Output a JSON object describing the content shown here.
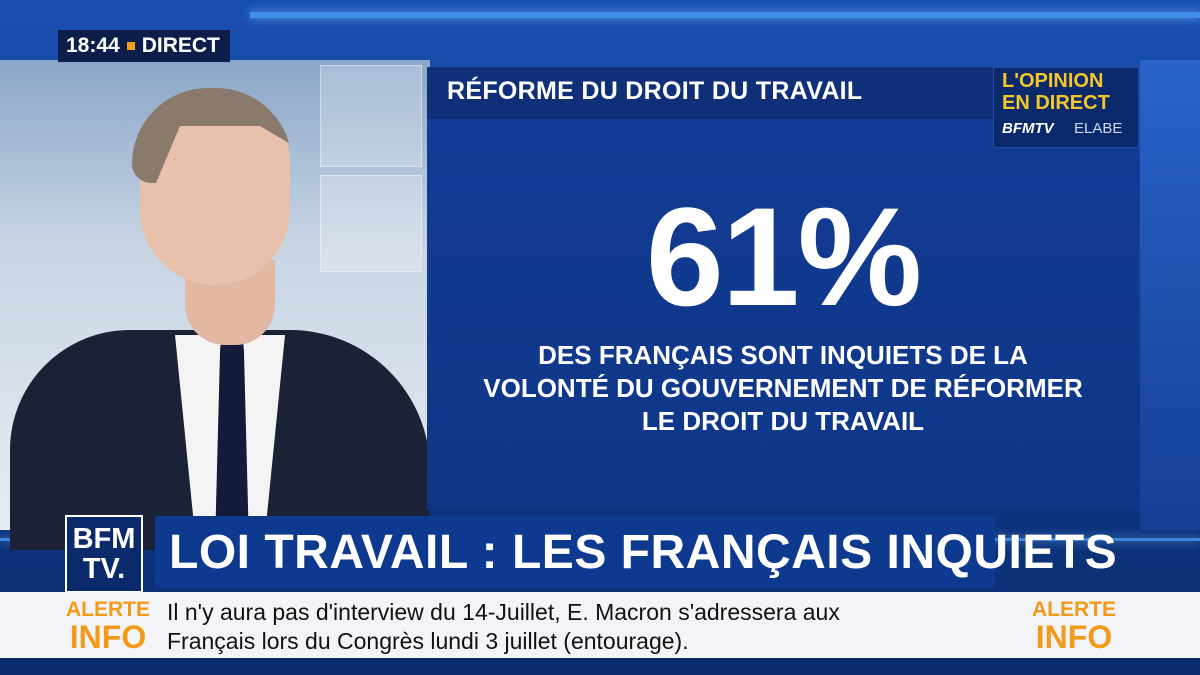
{
  "clock": {
    "time": "18:44",
    "live_label": "DIRECT"
  },
  "poll": {
    "title": "RÉFORME DU DROIT DU TRAVAIL",
    "opinion_line1": "L'OPINION",
    "opinion_line2": "EN DIRECT",
    "opinion_brand": "BFMTV",
    "opinion_partner": "ELABE",
    "stat_value": "61%",
    "stat_text_line1": "DES FRANÇAIS SONT INQUIETS DE LA",
    "stat_text_line2": "VOLONTÉ DU GOUVERNEMENT DE RÉFORMER",
    "stat_text_line3": "LE DROIT DU TRAVAIL"
  },
  "lower_third": {
    "logo_line1": "BFM",
    "logo_line2": "TV.",
    "headline": "LOI TRAVAIL : LES FRANÇAIS INQUIETS"
  },
  "ticker": {
    "alert_word1": "ALERTE",
    "alert_word2": "INFO",
    "text_line1": "Il n'y aura pas d'interview du 14-Juillet, E. Macron s'adressera aux",
    "text_line2": "Français lors du Congrès lundi 3 juillet (entourage)."
  },
  "colors": {
    "accent": "#f29b1b",
    "navy": "#0b2a6c",
    "blue": "#123d96",
    "gold": "#f5c62a"
  }
}
